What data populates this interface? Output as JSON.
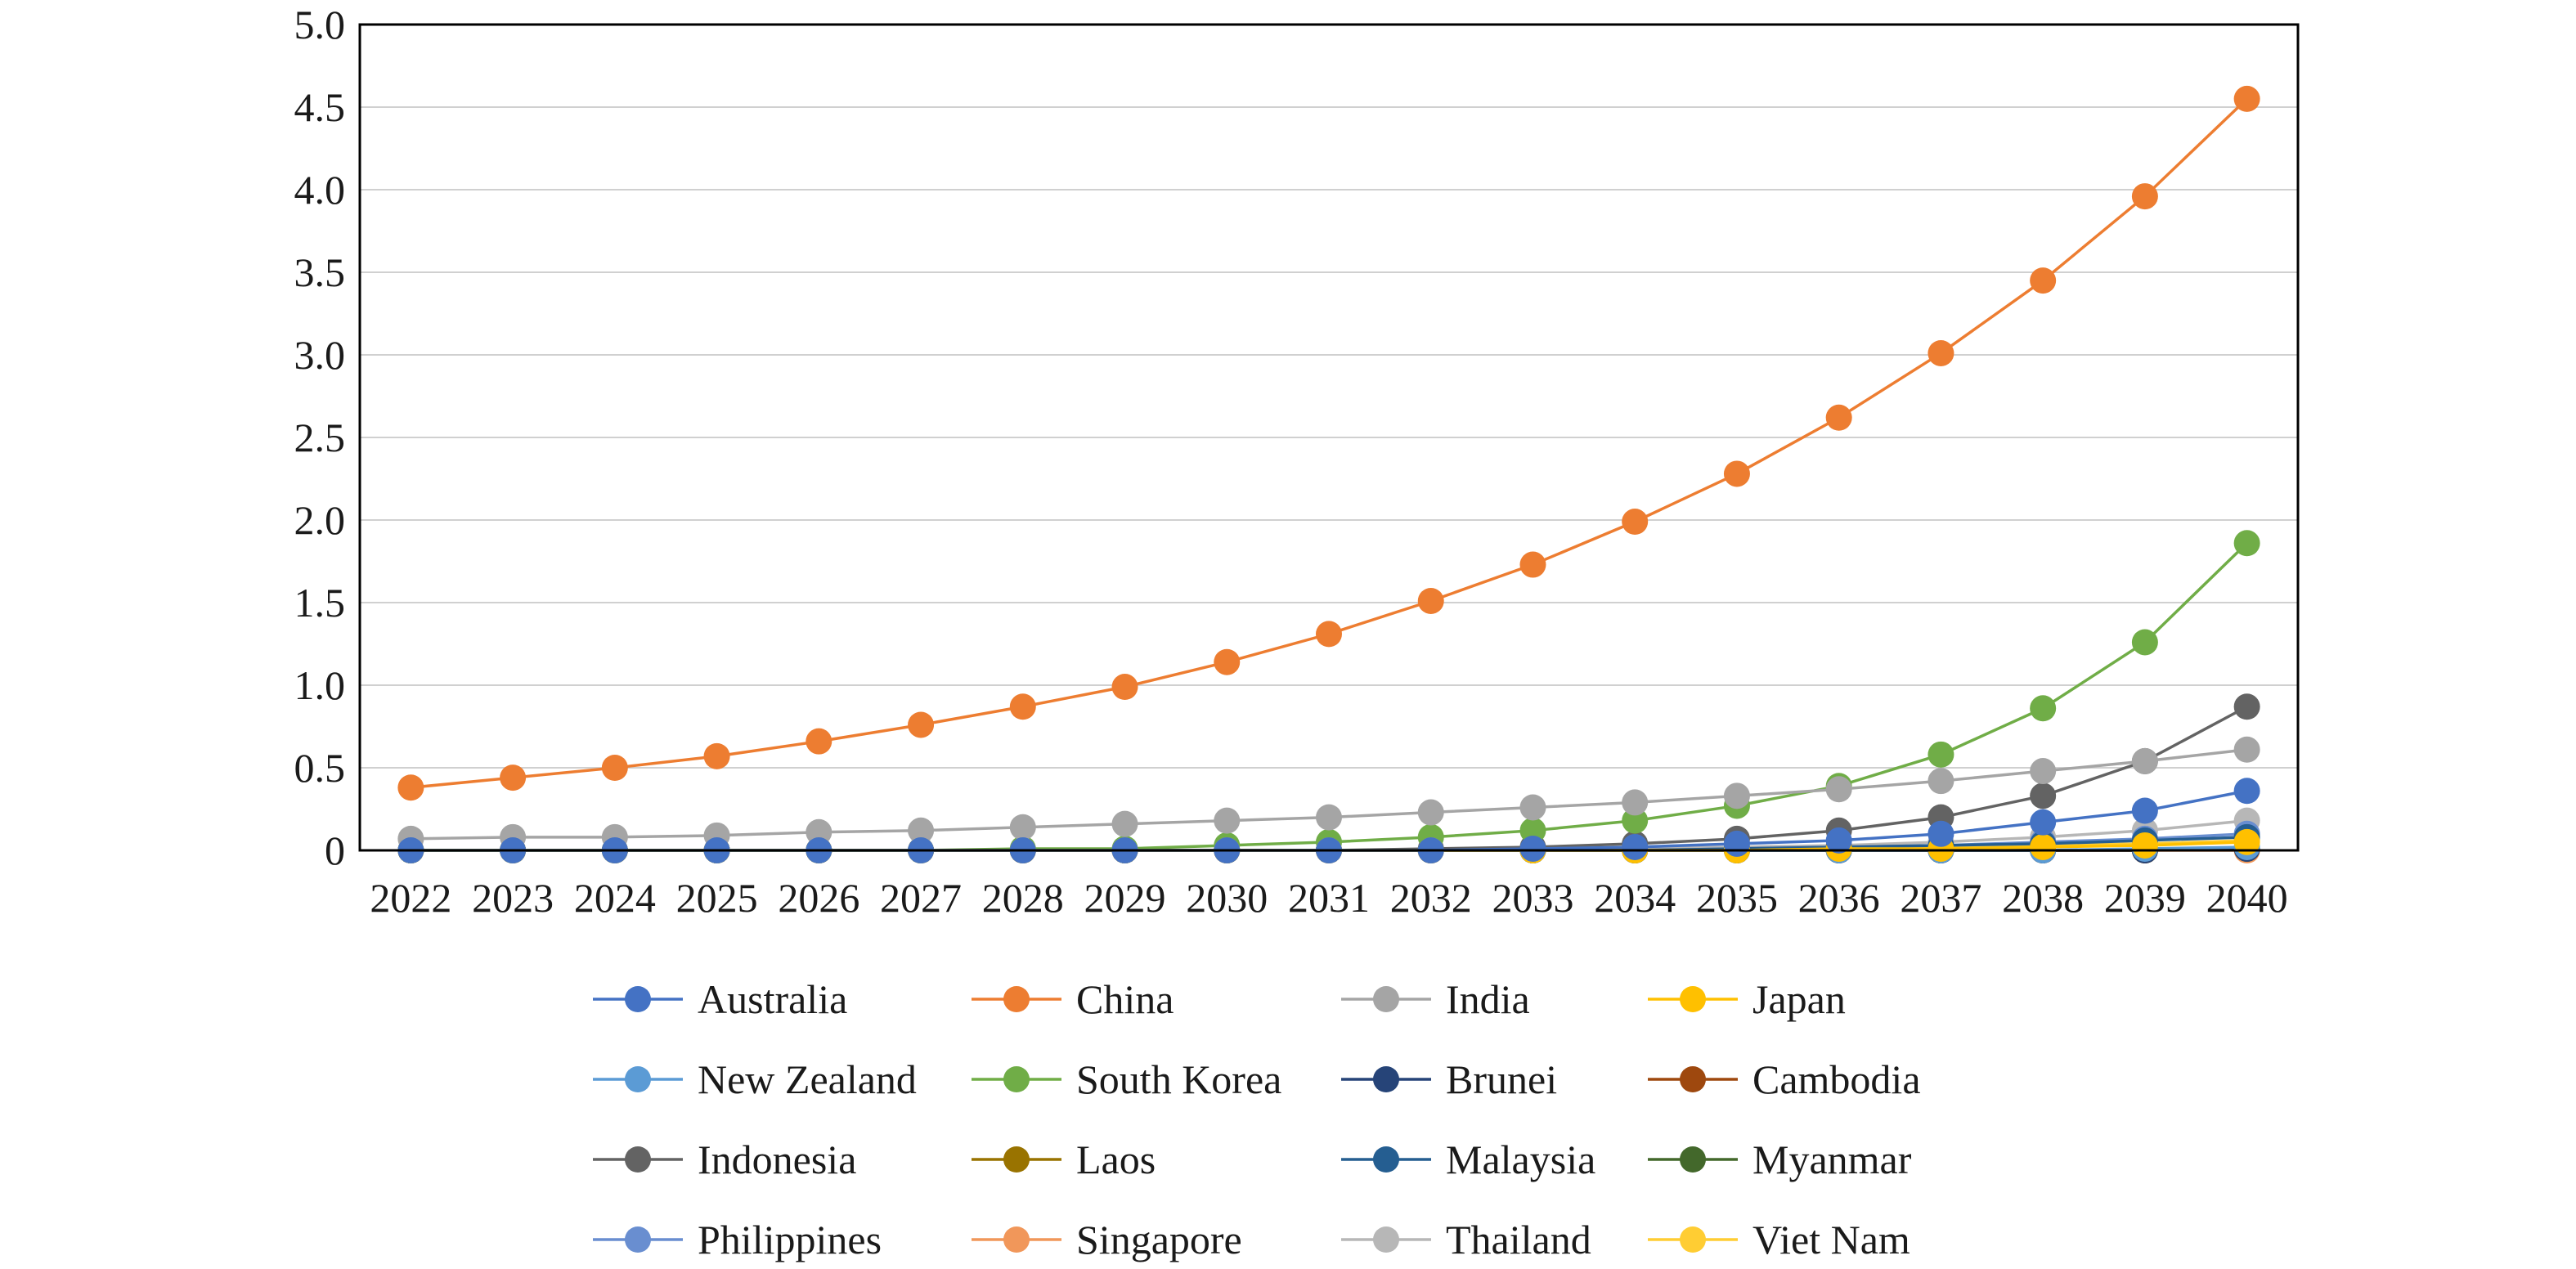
{
  "chart_data": {
    "type": "line",
    "title": "",
    "xlabel": "",
    "ylabel": "",
    "x": [
      "2022",
      "2023",
      "2024",
      "2025",
      "2026",
      "2027",
      "2028",
      "2029",
      "2030",
      "2031",
      "2032",
      "2033",
      "2034",
      "2035",
      "2036",
      "2037",
      "2038",
      "2039",
      "2040"
    ],
    "ylim": [
      0,
      5
    ],
    "y_ticks": [
      "0",
      "0.5",
      "1.0",
      "1.5",
      "2.0",
      "2.5",
      "3.0",
      "3.5",
      "4.0",
      "4.5",
      "5.0"
    ],
    "grid": "horizontal",
    "legend_position": "bottom",
    "series": [
      {
        "name": "Australia",
        "color": "#4472C4",
        "values": [
          0,
          0,
          0,
          0,
          0,
          0,
          0,
          0,
          0,
          0,
          0,
          0.01,
          0.02,
          0.04,
          0.06,
          0.1,
          0.17,
          0.24,
          0.36
        ]
      },
      {
        "name": "China",
        "color": "#ED7D31",
        "values": [
          0.38,
          0.44,
          0.5,
          0.57,
          0.66,
          0.76,
          0.87,
          0.99,
          1.14,
          1.31,
          1.51,
          1.73,
          1.99,
          2.28,
          2.62,
          3.01,
          3.45,
          3.96,
          4.55
        ]
      },
      {
        "name": "India",
        "color": "#A5A5A5",
        "values": [
          0.07,
          0.08,
          0.08,
          0.09,
          0.11,
          0.12,
          0.14,
          0.16,
          0.18,
          0.2,
          0.23,
          0.26,
          0.29,
          0.33,
          0.37,
          0.42,
          0.48,
          0.54,
          0.61
        ]
      },
      {
        "name": "Japan",
        "color": "#FFC000",
        "values": [
          0,
          0,
          0,
          0,
          0,
          0,
          0,
          0,
          0,
          0,
          0,
          0,
          0,
          0,
          0.01,
          0.01,
          0.02,
          0.03,
          0.05
        ]
      },
      {
        "name": "New Zealand",
        "color": "#5B9BD5",
        "values": [
          0,
          0,
          0,
          0,
          0,
          0,
          0,
          0,
          0,
          0,
          0,
          0,
          0,
          0,
          0,
          0,
          0,
          0.01,
          0.02
        ]
      },
      {
        "name": "South Korea",
        "color": "#70AD47",
        "values": [
          0,
          0,
          0,
          0,
          0,
          0,
          0.01,
          0.01,
          0.03,
          0.05,
          0.08,
          0.12,
          0.18,
          0.27,
          0.39,
          0.58,
          0.86,
          1.26,
          1.86
        ]
      },
      {
        "name": "Brunei",
        "color": "#264478",
        "values": [
          0,
          0,
          0,
          0,
          0,
          0,
          0,
          0,
          0,
          0,
          0,
          0,
          0,
          0,
          0,
          0,
          0,
          0,
          0.01
        ]
      },
      {
        "name": "Cambodia",
        "color": "#9E480E",
        "values": [
          0,
          0,
          0,
          0,
          0,
          0,
          0,
          0,
          0,
          0,
          0,
          0,
          0,
          0,
          0,
          0,
          0,
          0,
          0.01
        ]
      },
      {
        "name": "Indonesia",
        "color": "#636363",
        "values": [
          0,
          0,
          0,
          0,
          0,
          0,
          0,
          0,
          0,
          0,
          0.01,
          0.02,
          0.04,
          0.07,
          0.12,
          0.2,
          0.33,
          0.54,
          0.87
        ]
      },
      {
        "name": "Laos",
        "color": "#997300",
        "values": [
          0,
          0,
          0,
          0,
          0,
          0,
          0,
          0,
          0,
          0,
          0,
          0,
          0,
          0,
          0,
          0,
          0,
          0,
          0.01
        ]
      },
      {
        "name": "Malaysia",
        "color": "#255E91",
        "values": [
          0,
          0,
          0,
          0,
          0,
          0,
          0,
          0,
          0,
          0,
          0,
          0,
          0,
          0.01,
          0.02,
          0.03,
          0.04,
          0.06,
          0.08
        ]
      },
      {
        "name": "Myanmar",
        "color": "#43682B",
        "values": [
          0,
          0,
          0,
          0,
          0,
          0,
          0,
          0,
          0,
          0,
          0,
          0,
          0,
          0,
          0,
          0,
          0,
          0,
          0.01
        ]
      },
      {
        "name": "Philippines",
        "color": "#698ED0",
        "values": [
          0,
          0,
          0,
          0,
          0,
          0,
          0,
          0,
          0,
          0,
          0,
          0,
          0,
          0.01,
          0.02,
          0.03,
          0.05,
          0.07,
          0.1
        ]
      },
      {
        "name": "Singapore",
        "color": "#F1975A",
        "values": [
          0,
          0,
          0,
          0,
          0,
          0,
          0,
          0,
          0,
          0,
          0,
          0,
          0,
          0,
          0,
          0,
          0,
          0,
          0
        ]
      },
      {
        "name": "Thailand",
        "color": "#B7B7B7",
        "values": [
          0,
          0,
          0,
          0,
          0,
          0,
          0,
          0,
          0,
          0,
          0,
          0,
          0.01,
          0.02,
          0.03,
          0.05,
          0.08,
          0.12,
          0.18
        ]
      },
      {
        "name": "Viet Nam",
        "color": "#FFCD33",
        "values": [
          0,
          0,
          0,
          0,
          0,
          0,
          0,
          0,
          0,
          0,
          0,
          0,
          0,
          0,
          0.01,
          0.02,
          0.03,
          0.04,
          0.06
        ]
      }
    ]
  }
}
